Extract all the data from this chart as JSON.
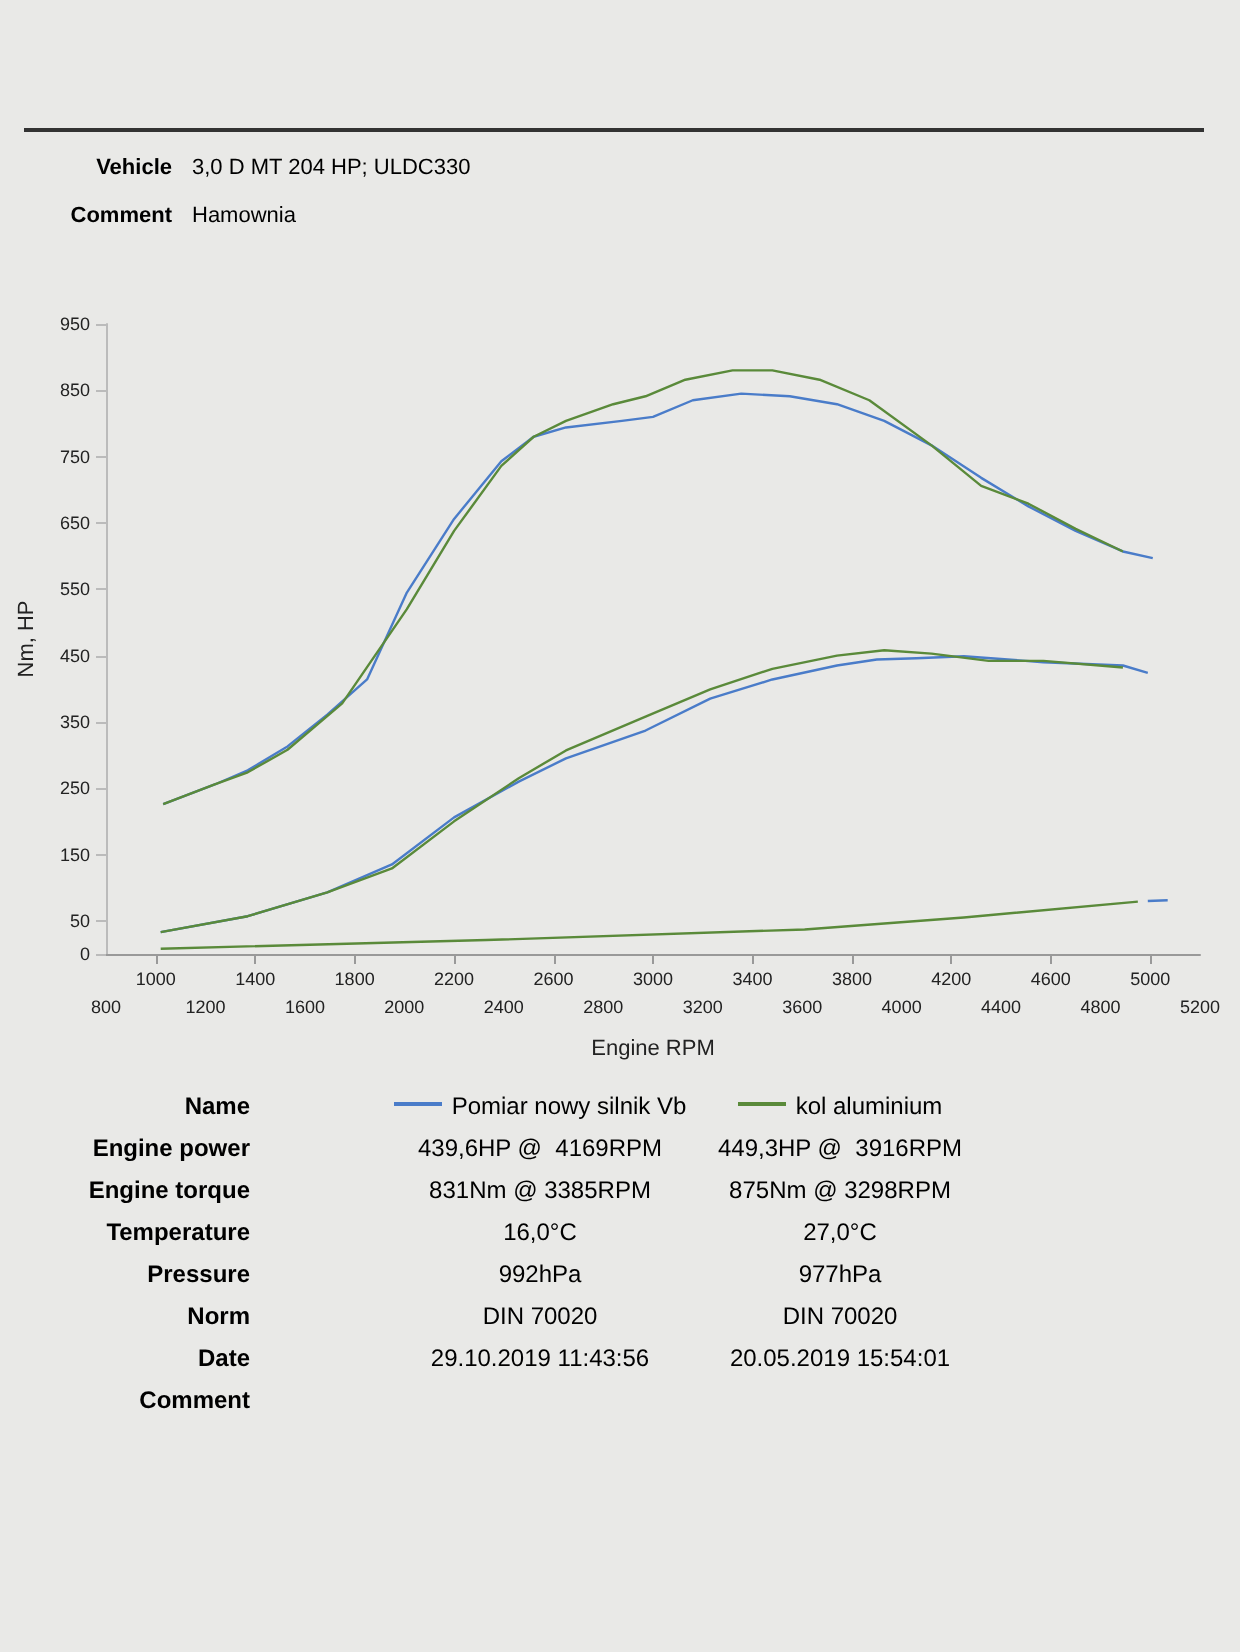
{
  "chart_data": {
    "type": "line",
    "xlabel": "Engine RPM",
    "ylabel": "Nm, HP",
    "xlim": [
      800,
      5200
    ],
    "ylim": [
      0,
      950
    ],
    "xticks": [
      1000,
      1400,
      1800,
      2200,
      2600,
      3000,
      3400,
      3800,
      4200,
      4600,
      5000
    ],
    "x2lim": [
      800,
      5200
    ],
    "x2ticks": [
      800,
      1200,
      1600,
      2000,
      2400,
      2800,
      3200,
      3600,
      4000,
      4400,
      4800,
      5200
    ],
    "yticks": [
      0,
      50,
      150,
      250,
      350,
      450,
      550,
      650,
      750,
      850,
      950
    ],
    "grid": false,
    "legend": "bottom",
    "marker": "none",
    "line_style": "solid",
    "series": [
      {
        "name": "Pomiar nowy silnik Vb",
        "color": "#4a7cc9",
        "x": [
          1030,
          1240,
          1370,
          1530,
          1690,
          1850,
          2010,
          2200,
          2390,
          2520,
          2650,
          2875,
          3000,
          3160,
          3355,
          3550,
          3740,
          3930,
          4120,
          4320,
          4510,
          4700,
          4890,
          5010
        ],
        "values": [
          226,
          256,
          277,
          313,
          361,
          414,
          545,
          656,
          743,
          780,
          794,
          804,
          810,
          835,
          845,
          841,
          829,
          804,
          767,
          718,
          675,
          638,
          607,
          597
        ]
      },
      {
        "name": "kol aluminium",
        "color": "#5a8a3a",
        "x": [
          1030,
          1240,
          1370,
          1530,
          1750,
          2010,
          2200,
          2390,
          2520,
          2650,
          2840,
          2970,
          3130,
          3320,
          3480,
          3670,
          3870,
          4120,
          4320,
          4510,
          4700,
          4890
        ],
        "values": [
          226,
          256,
          274,
          308,
          378,
          520,
          638,
          736,
          780,
          804,
          829,
          841,
          866,
          880,
          880,
          866,
          835,
          767,
          706,
          679,
          641,
          607
        ]
      },
      {
        "color": "#4a7cc9",
        "x": [
          1020,
          1370,
          1690,
          1950,
          2200,
          2460,
          2650,
          2970,
          3230,
          3480,
          3740,
          3900,
          4060,
          4250,
          4570,
          4890,
          4990
        ],
        "values": [
          33,
          57,
          93,
          135,
          206,
          260,
          295,
          337,
          385,
          414,
          435,
          444,
          446,
          449,
          440,
          435,
          424
        ]
      },
      {
        "color": "#5a8a3a",
        "x": [
          1020,
          1370,
          1690,
          1950,
          2200,
          2460,
          2650,
          2970,
          3230,
          3480,
          3740,
          3930,
          4120,
          4350,
          4570,
          4890
        ],
        "values": [
          33,
          57,
          93,
          129,
          200,
          265,
          307,
          358,
          399,
          430,
          450,
          458,
          453,
          442,
          442,
          432
        ]
      },
      {
        "color": "#4a7cc9",
        "x": [
          4990,
          5070
        ],
        "values": [
          80,
          81
        ]
      },
      {
        "color": "#5a8a3a",
        "x": [
          1020,
          2330,
          3610,
          4250,
          4950
        ],
        "values": [
          8,
          21,
          37,
          55,
          79
        ]
      }
    ],
    "annotations": [
      "Vehicle",
      "3,0 D MT 204 HP; ULDC330",
      "Comment",
      "Hamownia",
      "Name",
      "Engine power",
      "439,6HP @  4169RPM",
      "449,3HP @  3916RPM",
      "Engine torque",
      "831Nm @ 3385RPM",
      "875Nm @ 3298RPM",
      "Temperature",
      "16,0°C",
      "27,0°C",
      "Pressure",
      "992hPa",
      "977hPa",
      "Norm",
      "DIN 70020",
      "DIN 70020",
      "Date",
      "29.10.2019 11:43:56",
      "20.05.2019 15:54:01",
      "Comment"
    ]
  }
}
